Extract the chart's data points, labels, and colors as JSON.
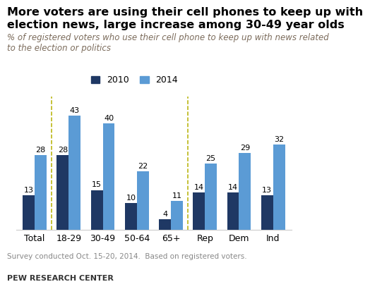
{
  "title_line1": "More voters are using their cell phones to keep up with",
  "title_line2": "election news, large increase among 30-49 year olds",
  "subtitle": "% of registered voters who use their cell phone to keep up with news related\nto the election or politics",
  "footnote": "Survey conducted Oct. 15-20, 2014.  Based on registered voters.",
  "source": "PEW RESEARCH CENTER",
  "categories": [
    "Total",
    "18-29",
    "30-49",
    "50-64",
    "65+",
    "Rep",
    "Dem",
    "Ind"
  ],
  "values_2010": [
    13,
    28,
    15,
    10,
    4,
    14,
    14,
    13
  ],
  "values_2014": [
    28,
    43,
    40,
    22,
    11,
    25,
    29,
    32
  ],
  "color_2010": "#1F3864",
  "color_2014": "#5B9BD5",
  "ylim": [
    0,
    50
  ],
  "legend_labels": [
    "2010",
    "2014"
  ],
  "bar_width": 0.35,
  "title_fontsize": 11.5,
  "subtitle_fontsize": 8.5,
  "label_fontsize": 8,
  "tick_fontsize": 9,
  "footnote_fontsize": 7.5,
  "source_fontsize": 8
}
